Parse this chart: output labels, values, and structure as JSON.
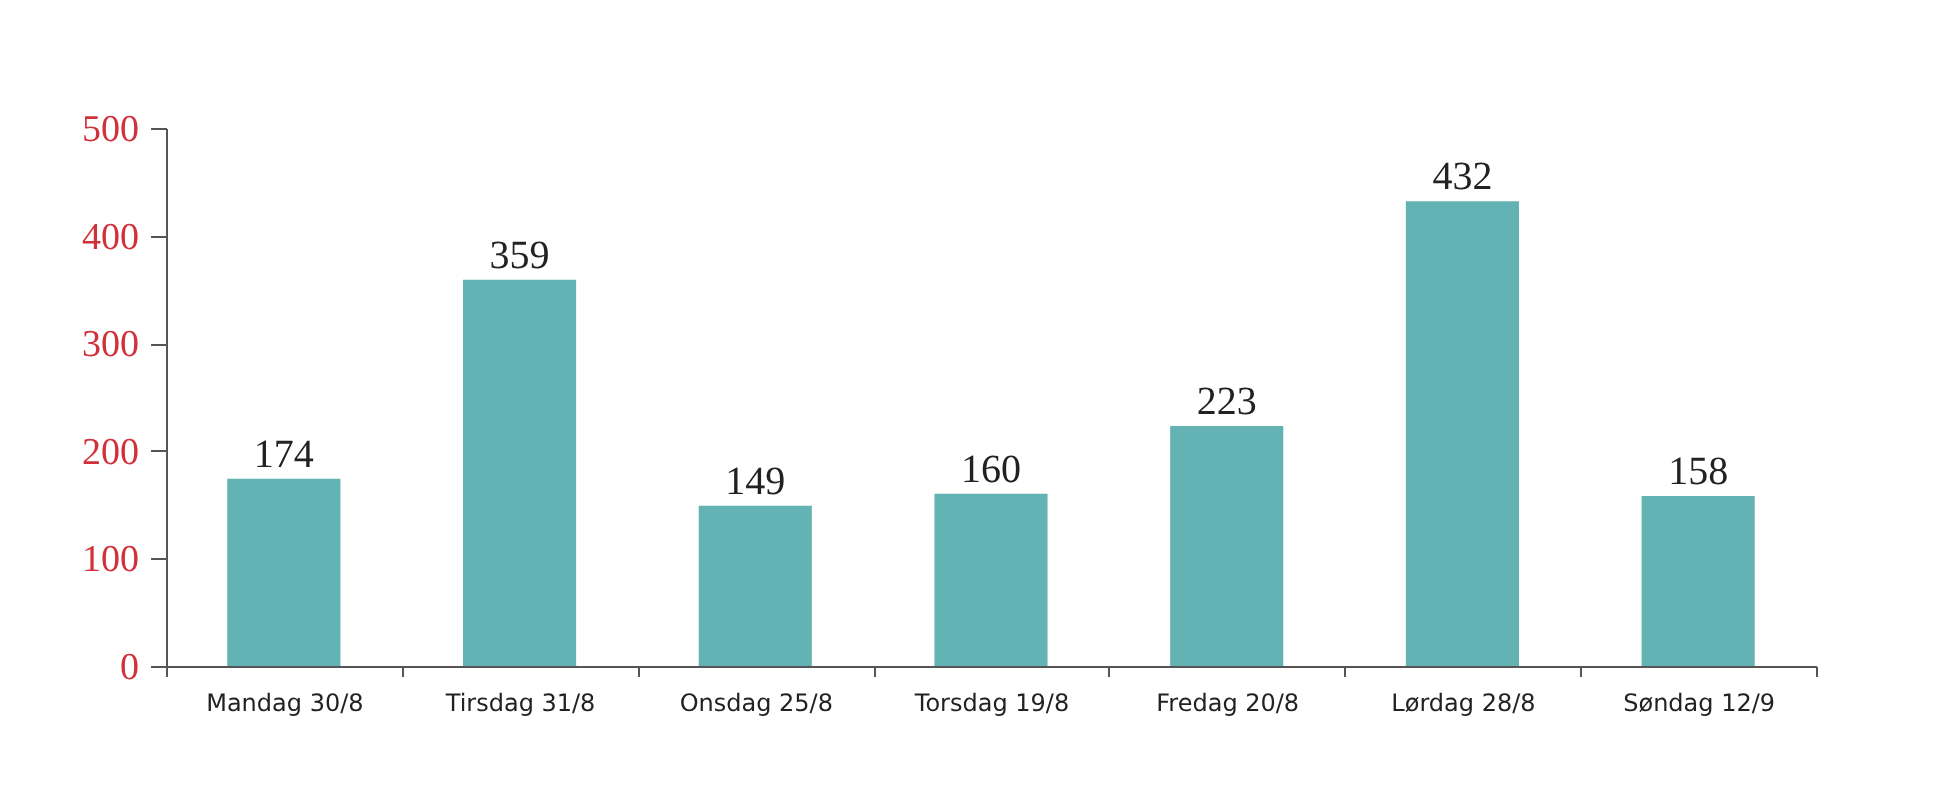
{
  "chart_data": {
    "type": "bar",
    "categories": [
      "Mandag 30/8",
      "Tirsdag 31/8",
      "Onsdag 25/8",
      "Torsdag 19/8",
      "Fredag 20/8",
      "Lørdag 28/8",
      "Søndag 12/9"
    ],
    "values": [
      174,
      359,
      149,
      160,
      223,
      432,
      158
    ],
    "color": "#64b3b4",
    "ylim": [
      0,
      500
    ],
    "yticks": [
      0,
      100,
      200,
      300,
      400,
      500
    ],
    "data_labels": true,
    "grid": false
  }
}
